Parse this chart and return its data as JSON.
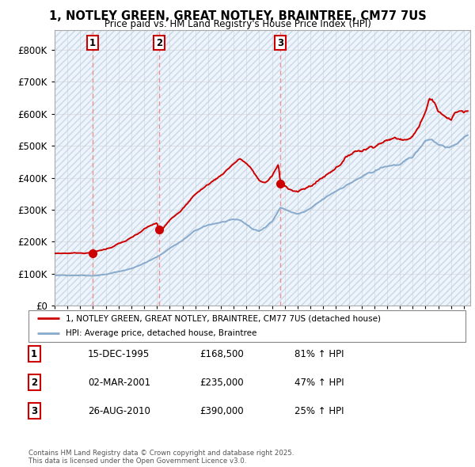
{
  "title": "1, NOTLEY GREEN, GREAT NOTLEY, BRAINTREE, CM77 7US",
  "subtitle": "Price paid vs. HM Land Registry's House Price Index (HPI)",
  "legend_line1": "1, NOTLEY GREEN, GREAT NOTLEY, BRAINTREE, CM77 7US (detached house)",
  "legend_line2": "HPI: Average price, detached house, Braintree",
  "footer": "Contains HM Land Registry data © Crown copyright and database right 2025.\nThis data is licensed under the Open Government Licence v3.0.",
  "transactions": [
    {
      "num": 1,
      "date": "15-DEC-1995",
      "price": "£168,500",
      "pct": "81% ↑ HPI",
      "x": 1995.96,
      "price_val": 168500
    },
    {
      "num": 2,
      "date": "02-MAR-2001",
      "price": "£235,000",
      "pct": "47% ↑ HPI",
      "x": 2001.17,
      "price_val": 235000
    },
    {
      "num": 3,
      "date": "26-AUG-2010",
      "price": "£390,000",
      "pct": "25% ↑ HPI",
      "x": 2010.65,
      "price_val": 390000
    }
  ],
  "red_color": "#cc0000",
  "blue_color": "#88aacc",
  "grid_color": "#cccccc",
  "dashed_color": "#ee8888",
  "ylim": [
    0,
    860000
  ],
  "xlim_start": 1993.0,
  "xlim_end": 2025.5,
  "yticks": [
    0,
    100000,
    200000,
    300000,
    400000,
    500000,
    600000,
    700000,
    800000
  ],
  "ytick_labels": [
    "£0",
    "£100K",
    "£200K",
    "£300K",
    "£400K",
    "£500K",
    "£600K",
    "£700K",
    "£800K"
  ]
}
